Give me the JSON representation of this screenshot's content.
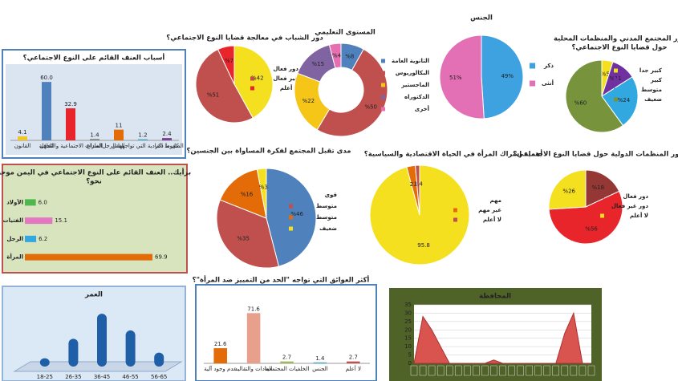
{
  "chart_data": [
    {
      "type": "bar",
      "title": [
        "أسباب العنف القائم على النوع الاجتماعي؟"
      ],
      "background": "#ffffff",
      "border": "#4f81bd",
      "panel": "#dbe5f1",
      "categories": [
        "القانون",
        "الجهل",
        "العادات الاجتماعية والثقافية",
        "الصراع",
        "الفقر",
        "الضغوط المادية التي تواجهها الرجل",
        "كل ما ذكر"
      ],
      "values": [
        4.1,
        60.0,
        32.9,
        1.4,
        11,
        1.2,
        2.4
      ],
      "value_labels": [
        "4.1",
        "60.0",
        "32.9",
        "1.4",
        "11",
        "1.2",
        "2.4"
      ],
      "colors": [
        "#f3c623",
        "#4f81bd",
        "#e8252a",
        "#7f7f7f",
        "#e36c09",
        "#4bacc6",
        "#7f3f98"
      ],
      "ylim": [
        0,
        70
      ]
    },
    {
      "type": "pie",
      "title": [
        "دور الشباب في معالجة قضايا النوع الاجتماعي؟"
      ],
      "categories": [
        "دور فعال",
        "غير فعال",
        "لا أعلم"
      ],
      "values": [
        42,
        51,
        7
      ],
      "value_labels": [
        "%42",
        "%51",
        "%7"
      ],
      "colors": [
        "#f5e020",
        "#c0504d",
        "#e8252a"
      ]
    },
    {
      "type": "pie",
      "donut": true,
      "title": [
        "المستوى التعليمي"
      ],
      "categories": [
        "الثانوية العامة",
        "البكالوريوس",
        "الماجستير",
        "الدكتوراه",
        "أخرى"
      ],
      "values": [
        8,
        50,
        22,
        15,
        4
      ],
      "value_labels": [
        "%8",
        "%50",
        "%22",
        "%15",
        "%4"
      ],
      "colors": [
        "#4f81bd",
        "#c0504d",
        "#f5c518",
        "#8064a2",
        "#e76fb1"
      ]
    },
    {
      "type": "pie",
      "title": [
        "الجنس"
      ],
      "categories": [
        "ذكر",
        "أنثى"
      ],
      "values": [
        49,
        51
      ],
      "value_labels": [
        "49%",
        "51%"
      ],
      "colors": [
        "#3fa2e0",
        "#e36fb4"
      ]
    },
    {
      "type": "pie",
      "title": [
        "دور المجتمع المدني والمنظمات المحلية",
        "حول قضايا النوع الاجتماعي؟"
      ],
      "categories": [
        "كبير جدا",
        "كبير",
        "متوسط",
        "ضعيف"
      ],
      "values": [
        5,
        11,
        24,
        60
      ],
      "value_labels": [
        "%5",
        "%11",
        "%24",
        "%60"
      ],
      "colors": [
        "#f5e020",
        "#7030a0",
        "#31a9e0",
        "#77933c"
      ]
    },
    {
      "type": "hbar",
      "title": [
        "برأيك.. العنف القائم على النوع الاجتماعي في اليمن موجه",
        "نحو؟"
      ],
      "background": "#d7e4bd",
      "border": "#c0504d",
      "panel": "#d7e4bd",
      "categories": [
        "الأولاد",
        "الفتيات",
        "الرجل",
        "المرأة"
      ],
      "values": [
        6.0,
        15.1,
        6.2,
        69.9
      ],
      "value_labels": [
        "6.0",
        "15.1",
        "6.2",
        "69.9"
      ],
      "colors": [
        "#4eb84e",
        "#e377c2",
        "#31a9e0",
        "#e36c09"
      ],
      "xlim": [
        0,
        80
      ]
    },
    {
      "type": "pie",
      "title": [
        "مدى تقبل المجتمع لفكرة المساواة بين الجنسين؟"
      ],
      "categories": [
        "قوي",
        "متوسط",
        "متوسط",
        "ضعيف"
      ],
      "values": [
        46,
        35,
        16,
        3
      ],
      "value_labels": [
        "%46",
        "%35",
        "%16",
        "%3"
      ],
      "colors": [
        "#4f81bd",
        "#c0504d",
        "#e36c09",
        "#f5e020"
      ]
    },
    {
      "type": "pie",
      "title": [
        "أهمية إشراك المرأة في الحياة الاقتصادية والسياسية؟"
      ],
      "categories": [
        "مهم",
        "غير مهم",
        "لا أعلم"
      ],
      "values": [
        95.8,
        2.8,
        1.4
      ],
      "value_labels": [
        "95.8",
        "2.8",
        "1.4"
      ],
      "colors": [
        "#f5e020",
        "#e36c09",
        "#c0504d"
      ]
    },
    {
      "type": "pie",
      "title": [
        "دور المنظمات الدولية حول قضايا النوع الاجتماعي؟"
      ],
      "categories": [
        "دور فعال",
        "دور غير فعال",
        "لا أعلم"
      ],
      "values": [
        18,
        56,
        26
      ],
      "value_labels": [
        "%18",
        "%56",
        "%26"
      ],
      "colors": [
        "#953735",
        "#e8252a",
        "#f5e020"
      ]
    },
    {
      "type": "bar3d",
      "title": [
        "العمر"
      ],
      "background": "#dbe8f5",
      "border": "#95b3d7",
      "panel": "#dbe8f5",
      "categories": [
        "18-25",
        "26-35",
        "36-45",
        "46-55",
        "56-65"
      ],
      "values": [
        6,
        20,
        38,
        26,
        10
      ],
      "colors": [
        "#1f5fa8"
      ],
      "ylim": [
        0,
        45
      ]
    },
    {
      "type": "bar",
      "title": [
        "أكثر العوائق التي تواجه \"الحد من التمييز ضد المرأة\"؟"
      ],
      "background": "#ffffff",
      "border": "#4f81bd",
      "panel": "#ffffff",
      "categories": [
        "عدم وجود آلية",
        "العادات والتقاليد",
        "الخلفيات المجتمعية",
        "الجنس",
        "لا أعلم"
      ],
      "values": [
        21.6,
        71.6,
        2.7,
        1.4,
        2.7
      ],
      "value_labels": [
        "21.6",
        "71.6",
        "2.7",
        "1.4",
        "2.7"
      ],
      "colors": [
        "#e36c09",
        "#e6a08c",
        "#9bbb59",
        "#4bacc6",
        "#c0504d"
      ],
      "ylim": [
        0,
        80
      ]
    },
    {
      "type": "area",
      "title": [
        "المحافظة"
      ],
      "background": "#4f6228",
      "border": "#4f6228",
      "panel": "#4f6228",
      "color": "#d9534f",
      "categories": [
        null,
        null,
        null,
        null,
        null,
        null,
        null,
        null,
        null,
        null,
        null,
        null,
        null,
        null,
        null,
        null,
        null,
        null,
        null,
        null,
        null
      ],
      "values": [
        0,
        28,
        20,
        10,
        0,
        0,
        0,
        0,
        0,
        2,
        0,
        0,
        0,
        0,
        0,
        0,
        0,
        18,
        30,
        0,
        0
      ],
      "ylim": [
        0,
        35
      ],
      "yticks": [
        0,
        5,
        10,
        15,
        20,
        25,
        30,
        35
      ],
      "grid": true
    }
  ]
}
